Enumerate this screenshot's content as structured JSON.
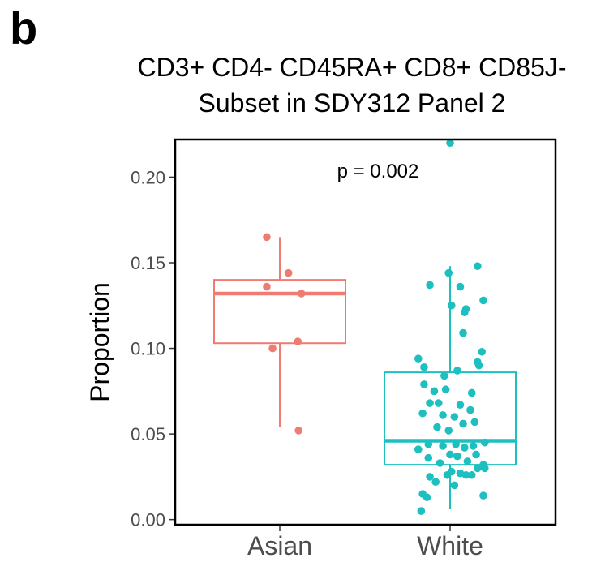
{
  "panel_label": "b",
  "chart_data": {
    "type": "box",
    "title_lines": [
      "CD3+ CD4- CD45RA+ CD8+ CD85J-",
      "Subset in SDY312 Panel 2"
    ],
    "xlabel": "",
    "ylabel": "Proportion",
    "categories": [
      "Asian",
      "White"
    ],
    "ylim": [
      -0.003,
      0.222
    ],
    "yticks": [
      "0.00",
      "0.05",
      "0.10",
      "0.15",
      "0.20"
    ],
    "annotation": "p = 0.002",
    "grid": false,
    "legend": "none",
    "colors": {
      "Asian": "#f07b72",
      "White": "#1dbfbf"
    },
    "boxes": [
      {
        "group": "Asian",
        "whisker_low": 0.054,
        "q1": 0.103,
        "median": 0.132,
        "q3": 0.14,
        "whisker_high": 0.165
      },
      {
        "group": "White",
        "whisker_low": 0.006,
        "q1": 0.032,
        "median": 0.046,
        "q3": 0.086,
        "whisker_high": 0.148
      }
    ],
    "series": [
      {
        "name": "Asian",
        "points": [
          {
            "x": -0.18,
            "y": 0.165
          },
          {
            "x": -0.18,
            "y": 0.136
          },
          {
            "x": 0.12,
            "y": 0.144
          },
          {
            "x": 0.3,
            "y": 0.132
          },
          {
            "x": -0.1,
            "y": 0.1
          },
          {
            "x": 0.25,
            "y": 0.104
          },
          {
            "x": 0.26,
            "y": 0.052
          }
        ]
      },
      {
        "name": "White",
        "points": [
          {
            "x": 0.0,
            "y": 0.22
          },
          {
            "x": -0.28,
            "y": 0.137
          },
          {
            "x": -0.02,
            "y": 0.144
          },
          {
            "x": 0.14,
            "y": 0.136
          },
          {
            "x": 0.38,
            "y": 0.148
          },
          {
            "x": 0.02,
            "y": 0.125
          },
          {
            "x": 0.2,
            "y": 0.121
          },
          {
            "x": 0.22,
            "y": 0.123
          },
          {
            "x": 0.46,
            "y": 0.128
          },
          {
            "x": 0.18,
            "y": 0.109
          },
          {
            "x": 0.38,
            "y": 0.092
          },
          {
            "x": 0.4,
            "y": 0.09
          },
          {
            "x": 0.44,
            "y": 0.098
          },
          {
            "x": -0.44,
            "y": 0.094
          },
          {
            "x": -0.36,
            "y": 0.089
          },
          {
            "x": -0.08,
            "y": 0.084
          },
          {
            "x": 0.1,
            "y": 0.087
          },
          {
            "x": -0.36,
            "y": 0.079
          },
          {
            "x": -0.22,
            "y": 0.075
          },
          {
            "x": -0.06,
            "y": 0.076
          },
          {
            "x": 0.14,
            "y": 0.067
          },
          {
            "x": 0.3,
            "y": 0.074
          },
          {
            "x": -0.28,
            "y": 0.068
          },
          {
            "x": -0.16,
            "y": 0.068
          },
          {
            "x": -0.38,
            "y": 0.062
          },
          {
            "x": -0.1,
            "y": 0.061
          },
          {
            "x": 0.06,
            "y": 0.06
          },
          {
            "x": 0.28,
            "y": 0.064
          },
          {
            "x": -0.18,
            "y": 0.054
          },
          {
            "x": 0.18,
            "y": 0.056
          },
          {
            "x": 0.34,
            "y": 0.057
          },
          {
            "x": -0.02,
            "y": 0.052
          },
          {
            "x": -0.44,
            "y": 0.041
          },
          {
            "x": -0.3,
            "y": 0.044
          },
          {
            "x": -0.1,
            "y": 0.043
          },
          {
            "x": 0.08,
            "y": 0.044
          },
          {
            "x": 0.2,
            "y": 0.042
          },
          {
            "x": 0.32,
            "y": 0.043
          },
          {
            "x": 0.48,
            "y": 0.045
          },
          {
            "x": -0.3,
            "y": 0.036
          },
          {
            "x": 0.0,
            "y": 0.038
          },
          {
            "x": 0.1,
            "y": 0.037
          },
          {
            "x": 0.24,
            "y": 0.034
          },
          {
            "x": 0.36,
            "y": 0.038
          },
          {
            "x": -0.14,
            "y": 0.033
          },
          {
            "x": 0.46,
            "y": 0.032
          },
          {
            "x": 0.38,
            "y": 0.03
          },
          {
            "x": 0.48,
            "y": 0.03
          },
          {
            "x": 0.02,
            "y": 0.028
          },
          {
            "x": 0.14,
            "y": 0.027
          },
          {
            "x": 0.22,
            "y": 0.026
          },
          {
            "x": 0.3,
            "y": 0.026
          },
          {
            "x": -0.04,
            "y": 0.026
          },
          {
            "x": -0.28,
            "y": 0.025
          },
          {
            "x": 0.06,
            "y": 0.02
          },
          {
            "x": -0.2,
            "y": 0.022
          },
          {
            "x": -0.38,
            "y": 0.015
          },
          {
            "x": -0.32,
            "y": 0.013
          },
          {
            "x": 0.46,
            "y": 0.014
          },
          {
            "x": -0.4,
            "y": 0.005
          }
        ]
      }
    ]
  }
}
